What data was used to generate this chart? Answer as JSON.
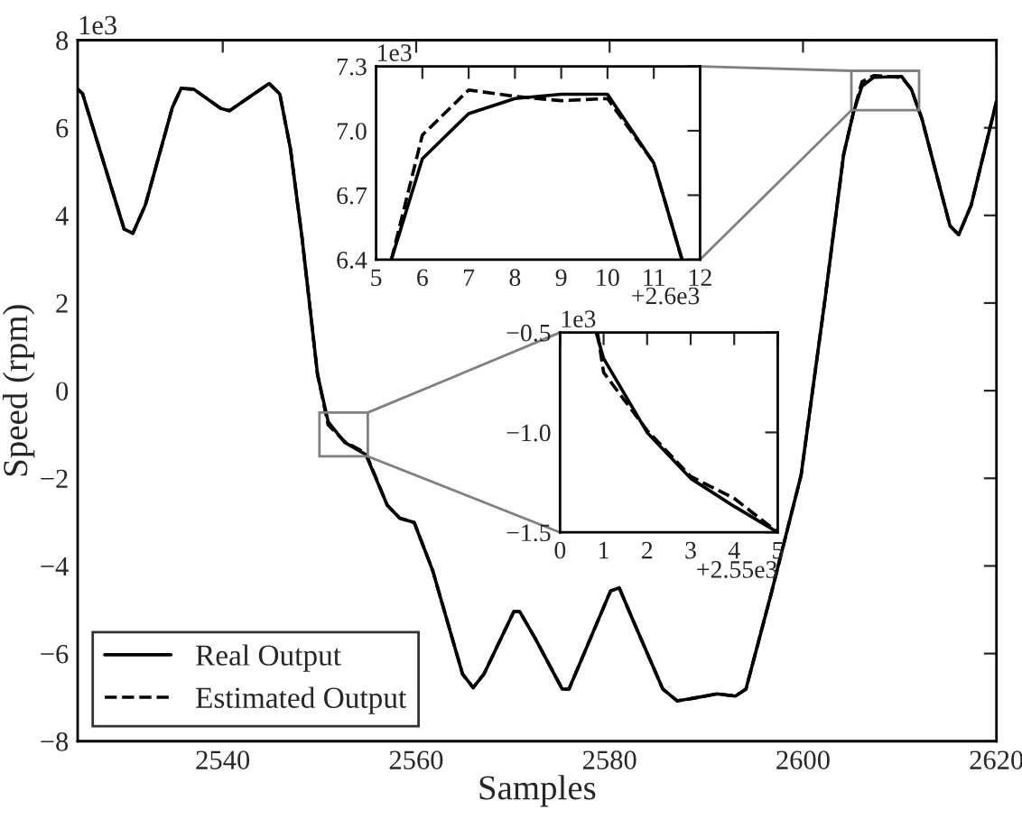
{
  "chart_data": [
    {
      "type": "line",
      "xlabel": "Samples",
      "ylabel": "Speed (rpm)",
      "annotations": [
        "1e3"
      ],
      "legend": "bottom left",
      "grid": false,
      "xlim": [
        2525,
        2620
      ],
      "xticks": [
        2540,
        2560,
        2580,
        2600,
        2620
      ],
      "ylim": [
        -8,
        8
      ],
      "yticks": [
        {
          "value": -8,
          "label": "−8"
        },
        {
          "value": -6,
          "label": "−6"
        },
        {
          "value": -4,
          "label": "−4"
        },
        {
          "value": -2,
          "label": "−2"
        },
        0,
        2,
        4,
        6,
        8
      ],
      "x": [
        2525,
        2525.5,
        2529.8,
        2530.7,
        2532,
        2534.8,
        2535.7,
        2537,
        2539.8,
        2540.7,
        2544.8,
        2545.9,
        2547,
        2548.2,
        2549.8,
        2550.9,
        2552.6,
        2554.8,
        2557,
        2558.3,
        2559.8,
        2561.7,
        2564.8,
        2565.9,
        2567,
        2570.1,
        2570.7,
        2572.3,
        2575.1,
        2575.8,
        2580.1,
        2581,
        2582.3,
        2585.5,
        2587,
        2588.9,
        2591.1,
        2593,
        2594.1,
        2596.7,
        2599.8,
        2602.3,
        2604.2,
        2605.2,
        2606.1,
        2607.3,
        2610.2,
        2611.2,
        2612.3,
        2615.2,
        2616.1,
        2617.4,
        2620
      ],
      "series": [
        {
          "name": "Real Output",
          "color": "#000000",
          "line_style": "solid",
          "values": [
            6.88,
            6.78,
            3.69,
            3.59,
            4.24,
            6.47,
            6.9,
            6.88,
            6.44,
            6.39,
            7.01,
            6.77,
            5.52,
            3.49,
            0.37,
            -0.71,
            -1.18,
            -1.46,
            -2.61,
            -2.91,
            -3.01,
            -4.1,
            -6.47,
            -6.78,
            -6.47,
            -5.04,
            -5.04,
            -5.65,
            -6.81,
            -6.81,
            -4.57,
            -4.5,
            -5.18,
            -6.81,
            -7.08,
            -7.01,
            -6.92,
            -6.97,
            -6.81,
            -4.64,
            -1.93,
            2.13,
            5.39,
            6.34,
            6.95,
            7.15,
            7.17,
            6.88,
            6.2,
            3.76,
            3.56,
            4.24,
            6.6
          ]
        },
        {
          "name": "Estimated Output",
          "color": "#000000",
          "line_style": "dashed",
          "values": [
            6.88,
            6.78,
            3.69,
            3.59,
            4.24,
            6.47,
            6.9,
            6.88,
            6.44,
            6.39,
            7.01,
            6.77,
            5.52,
            3.49,
            0.37,
            -0.78,
            -1.16,
            -1.43,
            -2.61,
            -2.91,
            -3.01,
            -4.1,
            -6.47,
            -6.78,
            -6.47,
            -5.04,
            -5.04,
            -5.65,
            -6.81,
            -6.81,
            -4.57,
            -4.5,
            -5.18,
            -6.81,
            -7.08,
            -7.01,
            -6.92,
            -6.97,
            -6.81,
            -4.64,
            -1.93,
            2.13,
            5.39,
            6.34,
            7.05,
            7.19,
            7.15,
            6.88,
            6.2,
            3.76,
            3.56,
            4.24,
            6.6
          ]
        }
      ]
    },
    {
      "type": "line",
      "annotations": [
        "1e3",
        "+2.6e3"
      ],
      "grid": false,
      "xlim": [
        5,
        12
      ],
      "xticks": [
        5,
        6,
        7,
        8,
        9,
        10,
        11,
        12
      ],
      "ylim": [
        6.4,
        7.3
      ],
      "yticks": [
        6.4,
        6.7,
        {
          "value": 7.0,
          "label": "7.0"
        },
        7.3
      ],
      "series": [
        {
          "color": "#000000",
          "line_style": "solid",
          "x": [
            5.33,
            6,
            7,
            8,
            9,
            10,
            11,
            11.61
          ],
          "values": [
            6.4,
            6.87,
            7.08,
            7.15,
            7.17,
            7.17,
            6.85,
            6.4
          ]
        },
        {
          "color": "#000000",
          "line_style": "dashed",
          "x": [
            5.33,
            6,
            7,
            8,
            9,
            10,
            11,
            11.61
          ],
          "values": [
            6.4,
            6.98,
            7.19,
            7.16,
            7.14,
            7.15,
            6.85,
            6.4
          ]
        }
      ]
    },
    {
      "type": "line",
      "annotations": [
        "1e3",
        "+2.55e3"
      ],
      "grid": false,
      "xlim": [
        0,
        5
      ],
      "xticks": [
        0,
        1,
        2,
        3,
        4,
        5
      ],
      "ylim": [
        -1.5,
        -0.5
      ],
      "yticks": [
        {
          "value": -1.5,
          "label": "−1.5"
        },
        {
          "value": -1.0,
          "label": "−1.0"
        },
        {
          "value": -0.5,
          "label": "−0.5"
        }
      ],
      "series": [
        {
          "color": "#000000",
          "line_style": "solid",
          "x": [
            0.83,
            1,
            2,
            3,
            4,
            5
          ],
          "values": [
            -0.5,
            -0.63,
            -1.0,
            -1.23,
            -1.37,
            -1.5
          ]
        },
        {
          "color": "#000000",
          "line_style": "dashed",
          "x": [
            0.86,
            1,
            2,
            3,
            4,
            5
          ],
          "values": [
            -0.5,
            -0.7,
            -0.99,
            -1.22,
            -1.33,
            -1.5
          ]
        }
      ]
    }
  ]
}
